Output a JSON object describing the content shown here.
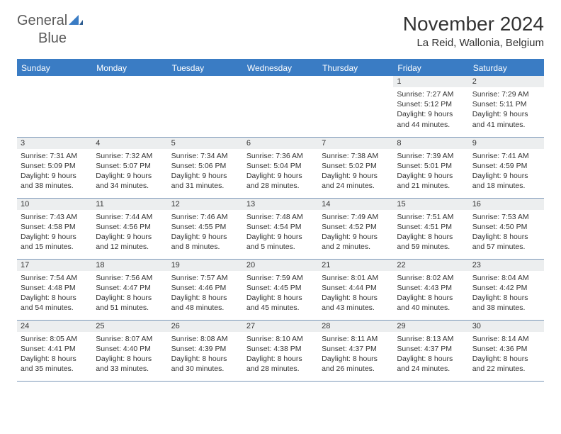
{
  "logo": {
    "general": "General",
    "blue": "Blue"
  },
  "title": "November 2024",
  "location": "La Reid, Wallonia, Belgium",
  "colors": {
    "header_bg": "#3a7cc4",
    "header_text": "#ffffff",
    "daynum_bg": "#eceeef",
    "border": "#7b98b8",
    "text": "#333333",
    "logo_gray": "#5a5a5a",
    "logo_blue": "#3a7cc4"
  },
  "fonts": {
    "title_size": 28,
    "location_size": 15,
    "dayheader_size": 12,
    "daynum_size": 11,
    "content_size": 10.5
  },
  "day_headers": [
    "Sunday",
    "Monday",
    "Tuesday",
    "Wednesday",
    "Thursday",
    "Friday",
    "Saturday"
  ],
  "weeks": [
    [
      null,
      null,
      null,
      null,
      null,
      {
        "n": "1",
        "sunrise": "7:27 AM",
        "sunset": "5:12 PM",
        "daylight": "9 hours and 44 minutes."
      },
      {
        "n": "2",
        "sunrise": "7:29 AM",
        "sunset": "5:11 PM",
        "daylight": "9 hours and 41 minutes."
      }
    ],
    [
      {
        "n": "3",
        "sunrise": "7:31 AM",
        "sunset": "5:09 PM",
        "daylight": "9 hours and 38 minutes."
      },
      {
        "n": "4",
        "sunrise": "7:32 AM",
        "sunset": "5:07 PM",
        "daylight": "9 hours and 34 minutes."
      },
      {
        "n": "5",
        "sunrise": "7:34 AM",
        "sunset": "5:06 PM",
        "daylight": "9 hours and 31 minutes."
      },
      {
        "n": "6",
        "sunrise": "7:36 AM",
        "sunset": "5:04 PM",
        "daylight": "9 hours and 28 minutes."
      },
      {
        "n": "7",
        "sunrise": "7:38 AM",
        "sunset": "5:02 PM",
        "daylight": "9 hours and 24 minutes."
      },
      {
        "n": "8",
        "sunrise": "7:39 AM",
        "sunset": "5:01 PM",
        "daylight": "9 hours and 21 minutes."
      },
      {
        "n": "9",
        "sunrise": "7:41 AM",
        "sunset": "4:59 PM",
        "daylight": "9 hours and 18 minutes."
      }
    ],
    [
      {
        "n": "10",
        "sunrise": "7:43 AM",
        "sunset": "4:58 PM",
        "daylight": "9 hours and 15 minutes."
      },
      {
        "n": "11",
        "sunrise": "7:44 AM",
        "sunset": "4:56 PM",
        "daylight": "9 hours and 12 minutes."
      },
      {
        "n": "12",
        "sunrise": "7:46 AM",
        "sunset": "4:55 PM",
        "daylight": "9 hours and 8 minutes."
      },
      {
        "n": "13",
        "sunrise": "7:48 AM",
        "sunset": "4:54 PM",
        "daylight": "9 hours and 5 minutes."
      },
      {
        "n": "14",
        "sunrise": "7:49 AM",
        "sunset": "4:52 PM",
        "daylight": "9 hours and 2 minutes."
      },
      {
        "n": "15",
        "sunrise": "7:51 AM",
        "sunset": "4:51 PM",
        "daylight": "8 hours and 59 minutes."
      },
      {
        "n": "16",
        "sunrise": "7:53 AM",
        "sunset": "4:50 PM",
        "daylight": "8 hours and 57 minutes."
      }
    ],
    [
      {
        "n": "17",
        "sunrise": "7:54 AM",
        "sunset": "4:48 PM",
        "daylight": "8 hours and 54 minutes."
      },
      {
        "n": "18",
        "sunrise": "7:56 AM",
        "sunset": "4:47 PM",
        "daylight": "8 hours and 51 minutes."
      },
      {
        "n": "19",
        "sunrise": "7:57 AM",
        "sunset": "4:46 PM",
        "daylight": "8 hours and 48 minutes."
      },
      {
        "n": "20",
        "sunrise": "7:59 AM",
        "sunset": "4:45 PM",
        "daylight": "8 hours and 45 minutes."
      },
      {
        "n": "21",
        "sunrise": "8:01 AM",
        "sunset": "4:44 PM",
        "daylight": "8 hours and 43 minutes."
      },
      {
        "n": "22",
        "sunrise": "8:02 AM",
        "sunset": "4:43 PM",
        "daylight": "8 hours and 40 minutes."
      },
      {
        "n": "23",
        "sunrise": "8:04 AM",
        "sunset": "4:42 PM",
        "daylight": "8 hours and 38 minutes."
      }
    ],
    [
      {
        "n": "24",
        "sunrise": "8:05 AM",
        "sunset": "4:41 PM",
        "daylight": "8 hours and 35 minutes."
      },
      {
        "n": "25",
        "sunrise": "8:07 AM",
        "sunset": "4:40 PM",
        "daylight": "8 hours and 33 minutes."
      },
      {
        "n": "26",
        "sunrise": "8:08 AM",
        "sunset": "4:39 PM",
        "daylight": "8 hours and 30 minutes."
      },
      {
        "n": "27",
        "sunrise": "8:10 AM",
        "sunset": "4:38 PM",
        "daylight": "8 hours and 28 minutes."
      },
      {
        "n": "28",
        "sunrise": "8:11 AM",
        "sunset": "4:37 PM",
        "daylight": "8 hours and 26 minutes."
      },
      {
        "n": "29",
        "sunrise": "8:13 AM",
        "sunset": "4:37 PM",
        "daylight": "8 hours and 24 minutes."
      },
      {
        "n": "30",
        "sunrise": "8:14 AM",
        "sunset": "4:36 PM",
        "daylight": "8 hours and 22 minutes."
      }
    ]
  ],
  "labels": {
    "sunrise": "Sunrise: ",
    "sunset": "Sunset: ",
    "daylight": "Daylight: "
  }
}
